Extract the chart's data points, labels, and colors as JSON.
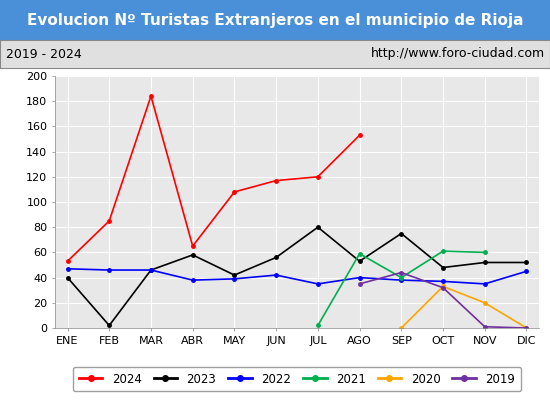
{
  "title": "Evolucion Nº Turistas Extranjeros en el municipio de Rioja",
  "title_bg": "#4a90d9",
  "subtitle_left": "2019 - 2024",
  "subtitle_right": "http://www.foro-ciudad.com",
  "months": [
    "ENE",
    "FEB",
    "MAR",
    "ABR",
    "MAY",
    "JUN",
    "JUL",
    "AGO",
    "SEP",
    "OCT",
    "NOV",
    "DIC"
  ],
  "series": {
    "2024": {
      "color": "#ff0000",
      "data": [
        53,
        85,
        184,
        65,
        108,
        117,
        120,
        153,
        null,
        null,
        null,
        null
      ]
    },
    "2023": {
      "color": "#000000",
      "data": [
        40,
        2,
        46,
        58,
        42,
        56,
        80,
        53,
        75,
        48,
        52,
        52
      ]
    },
    "2022": {
      "color": "#0000ff",
      "data": [
        47,
        46,
        46,
        38,
        39,
        42,
        35,
        40,
        38,
        37,
        35,
        45
      ]
    },
    "2021": {
      "color": "#00b050",
      "data": [
        null,
        null,
        null,
        null,
        null,
        null,
        2,
        59,
        40,
        61,
        60,
        null
      ]
    },
    "2020": {
      "color": "#ffa500",
      "data": [
        null,
        null,
        null,
        null,
        null,
        null,
        null,
        null,
        0,
        33,
        20,
        0
      ]
    },
    "2019": {
      "color": "#7030a0",
      "data": [
        null,
        null,
        null,
        null,
        null,
        null,
        null,
        35,
        44,
        32,
        1,
        0
      ]
    }
  },
  "ylim": [
    0,
    200
  ],
  "yticks": [
    0,
    20,
    40,
    60,
    80,
    100,
    120,
    140,
    160,
    180,
    200
  ],
  "legend_order": [
    "2024",
    "2023",
    "2022",
    "2021",
    "2020",
    "2019"
  ],
  "bg_color": "#ffffff",
  "plot_bg_color": "#e8e8e8",
  "grid_color": "#ffffff",
  "title_fontsize": 11,
  "tick_fontsize": 8
}
